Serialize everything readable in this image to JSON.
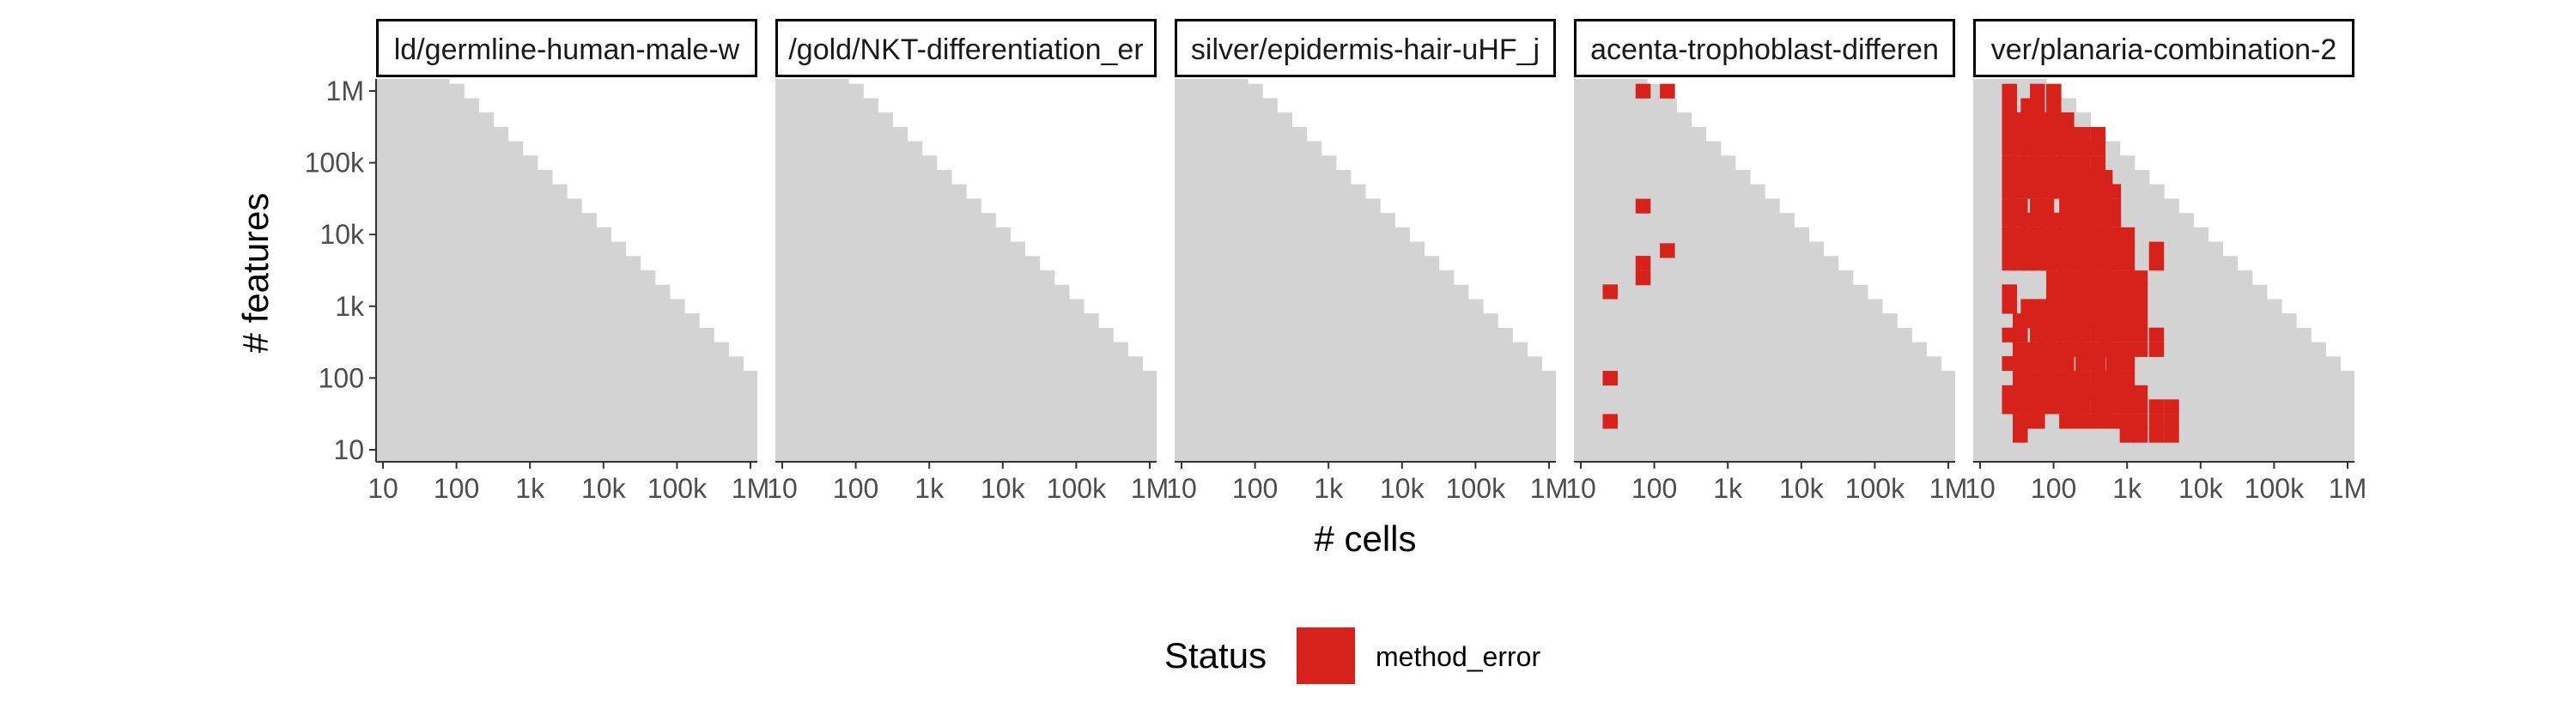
{
  "chart_data": {
    "type": "heatmap",
    "xlabel": "# cells",
    "ylabel": "# features",
    "x_scale": "log10",
    "y_scale": "log10",
    "xlim": [
      10,
      1000000
    ],
    "ylim": [
      10,
      1000000
    ],
    "x_ticks": [
      10,
      100,
      1000,
      10000,
      100000,
      1000000
    ],
    "y_ticks": [
      10,
      100,
      1000,
      10000,
      100000,
      1000000
    ],
    "x_tick_labels": [
      "10",
      "100",
      "1k",
      "10k",
      "100k",
      "1M"
    ],
    "y_tick_labels": [
      "10",
      "100",
      "1k",
      "10k",
      "100k",
      "1M"
    ],
    "grid": false,
    "dataset_region": "log10(cells) + log10(features) <= 8.1",
    "background_color": "#d3d3d3",
    "legend": {
      "title": "Status",
      "position": "bottom",
      "entries": [
        {
          "label": "method_error",
          "color": "#d7211b"
        }
      ]
    },
    "panels": [
      {
        "title": "ld/germline-human-male-w",
        "method_error": []
      },
      {
        "title": "/gold/NKT-differentiation_er",
        "method_error": []
      },
      {
        "title": "silver/epidermis-hair-uHF_j",
        "method_error": []
      },
      {
        "title": "acenta-trophoblast-differen",
        "method_error": [
          [
            70,
            1000000
          ],
          [
            150,
            1000000
          ],
          [
            70,
            25000
          ],
          [
            150,
            6000
          ],
          [
            70,
            4000
          ],
          [
            70,
            2500
          ],
          [
            25,
            1600
          ],
          [
            25,
            100
          ],
          [
            25,
            25
          ]
        ]
      },
      {
        "title": "ver/planaria-combination-2",
        "method_error": [
          [
            25,
            1000000
          ],
          [
            60,
            1000000
          ],
          [
            100,
            1000000
          ],
          [
            25,
            630000
          ],
          [
            45,
            630000
          ],
          [
            60,
            630000
          ],
          [
            100,
            630000
          ],
          [
            25,
            400000
          ],
          [
            35,
            400000
          ],
          [
            45,
            400000
          ],
          [
            60,
            400000
          ],
          [
            80,
            400000
          ],
          [
            100,
            400000
          ],
          [
            150,
            400000
          ],
          [
            25,
            250000
          ],
          [
            35,
            250000
          ],
          [
            45,
            250000
          ],
          [
            60,
            250000
          ],
          [
            80,
            250000
          ],
          [
            100,
            250000
          ],
          [
            150,
            250000
          ],
          [
            200,
            250000
          ],
          [
            250,
            250000
          ],
          [
            400,
            250000
          ],
          [
            25,
            160000
          ],
          [
            35,
            160000
          ],
          [
            45,
            160000
          ],
          [
            60,
            160000
          ],
          [
            80,
            160000
          ],
          [
            100,
            160000
          ],
          [
            150,
            160000
          ],
          [
            200,
            160000
          ],
          [
            250,
            160000
          ],
          [
            300,
            160000
          ],
          [
            400,
            160000
          ],
          [
            25,
            100000
          ],
          [
            35,
            100000
          ],
          [
            45,
            100000
          ],
          [
            60,
            100000
          ],
          [
            80,
            100000
          ],
          [
            100,
            100000
          ],
          [
            150,
            100000
          ],
          [
            200,
            100000
          ],
          [
            250,
            100000
          ],
          [
            400,
            100000
          ],
          [
            25,
            63000
          ],
          [
            35,
            63000
          ],
          [
            45,
            63000
          ],
          [
            60,
            63000
          ],
          [
            80,
            63000
          ],
          [
            100,
            63000
          ],
          [
            150,
            63000
          ],
          [
            200,
            63000
          ],
          [
            300,
            63000
          ],
          [
            400,
            63000
          ],
          [
            500,
            63000
          ],
          [
            25,
            40000
          ],
          [
            35,
            40000
          ],
          [
            45,
            40000
          ],
          [
            60,
            40000
          ],
          [
            80,
            40000
          ],
          [
            100,
            40000
          ],
          [
            150,
            40000
          ],
          [
            200,
            40000
          ],
          [
            250,
            40000
          ],
          [
            300,
            40000
          ],
          [
            400,
            40000
          ],
          [
            500,
            40000
          ],
          [
            650,
            40000
          ],
          [
            25,
            25000
          ],
          [
            35,
            25000
          ],
          [
            60,
            25000
          ],
          [
            80,
            25000
          ],
          [
            150,
            25000
          ],
          [
            200,
            25000
          ],
          [
            250,
            25000
          ],
          [
            300,
            25000
          ],
          [
            400,
            25000
          ],
          [
            500,
            25000
          ],
          [
            650,
            25000
          ],
          [
            25,
            16000
          ],
          [
            35,
            16000
          ],
          [
            45,
            16000
          ],
          [
            60,
            16000
          ],
          [
            80,
            16000
          ],
          [
            100,
            16000
          ],
          [
            150,
            16000
          ],
          [
            200,
            16000
          ],
          [
            250,
            16000
          ],
          [
            300,
            16000
          ],
          [
            400,
            16000
          ],
          [
            500,
            16000
          ],
          [
            650,
            16000
          ],
          [
            25,
            10000
          ],
          [
            35,
            10000
          ],
          [
            45,
            10000
          ],
          [
            60,
            10000
          ],
          [
            80,
            10000
          ],
          [
            100,
            10000
          ],
          [
            150,
            10000
          ],
          [
            200,
            10000
          ],
          [
            250,
            10000
          ],
          [
            300,
            10000
          ],
          [
            400,
            10000
          ],
          [
            500,
            10000
          ],
          [
            650,
            10000
          ],
          [
            1000,
            10000
          ],
          [
            25,
            6300
          ],
          [
            35,
            6300
          ],
          [
            45,
            6300
          ],
          [
            60,
            6300
          ],
          [
            80,
            6300
          ],
          [
            100,
            6300
          ],
          [
            150,
            6300
          ],
          [
            200,
            6300
          ],
          [
            250,
            6300
          ],
          [
            300,
            6300
          ],
          [
            400,
            6300
          ],
          [
            500,
            6300
          ],
          [
            650,
            6300
          ],
          [
            1000,
            6300
          ],
          [
            2500,
            6300
          ],
          [
            25,
            4000
          ],
          [
            35,
            4000
          ],
          [
            45,
            4000
          ],
          [
            60,
            4000
          ],
          [
            80,
            4000
          ],
          [
            100,
            4000
          ],
          [
            150,
            4000
          ],
          [
            200,
            4000
          ],
          [
            250,
            4000
          ],
          [
            300,
            4000
          ],
          [
            400,
            4000
          ],
          [
            500,
            4000
          ],
          [
            650,
            4000
          ],
          [
            1000,
            4000
          ],
          [
            2500,
            4000
          ],
          [
            100,
            2500
          ],
          [
            150,
            2500
          ],
          [
            200,
            2500
          ],
          [
            250,
            2500
          ],
          [
            300,
            2500
          ],
          [
            400,
            2500
          ],
          [
            500,
            2500
          ],
          [
            650,
            2500
          ],
          [
            1000,
            2500
          ],
          [
            1500,
            2500
          ],
          [
            25,
            1600
          ],
          [
            100,
            1600
          ],
          [
            150,
            1600
          ],
          [
            200,
            1600
          ],
          [
            300,
            1600
          ],
          [
            400,
            1600
          ],
          [
            500,
            1600
          ],
          [
            650,
            1600
          ],
          [
            1000,
            1600
          ],
          [
            1500,
            1600
          ],
          [
            25,
            1000
          ],
          [
            45,
            1000
          ],
          [
            60,
            1000
          ],
          [
            80,
            1000
          ],
          [
            100,
            1000
          ],
          [
            150,
            1000
          ],
          [
            200,
            1000
          ],
          [
            250,
            1000
          ],
          [
            300,
            1000
          ],
          [
            400,
            1000
          ],
          [
            500,
            1000
          ],
          [
            650,
            1000
          ],
          [
            1000,
            1000
          ],
          [
            1500,
            1000
          ],
          [
            35,
            630
          ],
          [
            45,
            630
          ],
          [
            60,
            630
          ],
          [
            80,
            630
          ],
          [
            100,
            630
          ],
          [
            150,
            630
          ],
          [
            200,
            630
          ],
          [
            250,
            630
          ],
          [
            300,
            630
          ],
          [
            400,
            630
          ],
          [
            500,
            630
          ],
          [
            650,
            630
          ],
          [
            1000,
            630
          ],
          [
            1500,
            630
          ],
          [
            25,
            400
          ],
          [
            35,
            400
          ],
          [
            60,
            400
          ],
          [
            80,
            400
          ],
          [
            100,
            400
          ],
          [
            150,
            400
          ],
          [
            200,
            400
          ],
          [
            250,
            400
          ],
          [
            400,
            400
          ],
          [
            500,
            400
          ],
          [
            650,
            400
          ],
          [
            1000,
            400
          ],
          [
            1500,
            400
          ],
          [
            2500,
            400
          ],
          [
            35,
            250
          ],
          [
            45,
            250
          ],
          [
            60,
            250
          ],
          [
            80,
            250
          ],
          [
            100,
            250
          ],
          [
            150,
            250
          ],
          [
            200,
            250
          ],
          [
            250,
            250
          ],
          [
            300,
            250
          ],
          [
            400,
            250
          ],
          [
            500,
            250
          ],
          [
            650,
            250
          ],
          [
            1000,
            250
          ],
          [
            1500,
            250
          ],
          [
            2500,
            250
          ],
          [
            25,
            160
          ],
          [
            35,
            160
          ],
          [
            45,
            160
          ],
          [
            60,
            160
          ],
          [
            80,
            160
          ],
          [
            100,
            160
          ],
          [
            150,
            160
          ],
          [
            250,
            160
          ],
          [
            300,
            160
          ],
          [
            400,
            160
          ],
          [
            650,
            160
          ],
          [
            1000,
            160
          ],
          [
            35,
            100
          ],
          [
            45,
            100
          ],
          [
            60,
            100
          ],
          [
            80,
            100
          ],
          [
            100,
            100
          ],
          [
            150,
            100
          ],
          [
            200,
            100
          ],
          [
            250,
            100
          ],
          [
            400,
            100
          ],
          [
            500,
            100
          ],
          [
            650,
            100
          ],
          [
            1000,
            100
          ],
          [
            25,
            63
          ],
          [
            35,
            63
          ],
          [
            45,
            63
          ],
          [
            60,
            63
          ],
          [
            80,
            63
          ],
          [
            100,
            63
          ],
          [
            150,
            63
          ],
          [
            200,
            63
          ],
          [
            250,
            63
          ],
          [
            300,
            63
          ],
          [
            400,
            63
          ],
          [
            500,
            63
          ],
          [
            650,
            63
          ],
          [
            1000,
            63
          ],
          [
            1500,
            63
          ],
          [
            25,
            40
          ],
          [
            35,
            40
          ],
          [
            45,
            40
          ],
          [
            60,
            40
          ],
          [
            80,
            40
          ],
          [
            100,
            40
          ],
          [
            150,
            40
          ],
          [
            200,
            40
          ],
          [
            250,
            40
          ],
          [
            400,
            40
          ],
          [
            500,
            40
          ],
          [
            650,
            40
          ],
          [
            1000,
            40
          ],
          [
            1500,
            40
          ],
          [
            2500,
            40
          ],
          [
            4000,
            40
          ],
          [
            35,
            25
          ],
          [
            45,
            25
          ],
          [
            60,
            25
          ],
          [
            150,
            25
          ],
          [
            200,
            25
          ],
          [
            250,
            25
          ],
          [
            300,
            25
          ],
          [
            400,
            25
          ],
          [
            500,
            25
          ],
          [
            650,
            25
          ],
          [
            1000,
            25
          ],
          [
            1500,
            25
          ],
          [
            2500,
            25
          ],
          [
            4000,
            25
          ],
          [
            35,
            16
          ],
          [
            1000,
            16
          ],
          [
            1500,
            16
          ],
          [
            2500,
            16
          ],
          [
            4000,
            16
          ]
        ]
      }
    ]
  }
}
